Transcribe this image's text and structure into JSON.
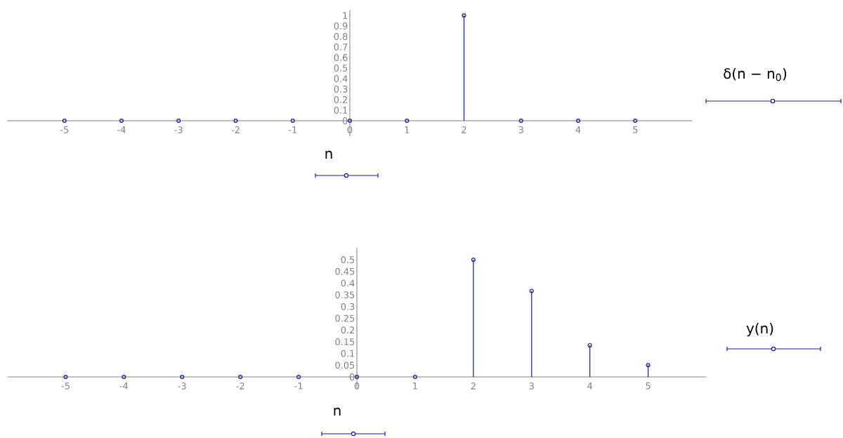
{
  "chart_data": [
    {
      "type": "lollipop",
      "xlabel": "n",
      "ylabel": "δ(n − n$_{0}$)",
      "color": "#1a1a96",
      "marker": "circle",
      "x": [
        -5,
        -4,
        -3,
        -2,
        -1,
        0,
        1,
        2,
        3,
        4,
        5
      ],
      "values": [
        0,
        0,
        0,
        0,
        0,
        0,
        0,
        1,
        0,
        0,
        0
      ],
      "xlim": [
        -6,
        6
      ],
      "ylim": [
        -0.15,
        1.05
      ],
      "xticks": [
        -5,
        -4,
        -3,
        -2,
        -1,
        0,
        1,
        2,
        3,
        4,
        5
      ],
      "yticks": [
        0,
        0.1,
        0.2,
        0.3,
        0.4,
        0.5,
        0.6,
        0.7,
        0.8,
        0.9,
        1
      ]
    },
    {
      "type": "lollipop",
      "xlabel": "n",
      "ylabel": "y(n)",
      "color": "#1a1a96",
      "marker": "circle",
      "x": [
        -5,
        -4,
        -3,
        -2,
        -1,
        0,
        1,
        2,
        3,
        4,
        5
      ],
      "values": [
        0,
        0,
        0,
        0,
        0,
        0,
        0,
        0.5,
        0.367,
        0.135,
        0.05
      ],
      "xlim": [
        -6,
        6
      ],
      "ylim": [
        -0.05,
        0.55
      ],
      "xticks": [
        -5,
        -4,
        -3,
        -2,
        -1,
        0,
        1,
        2,
        3,
        4,
        5
      ],
      "yticks": [
        0,
        0.05,
        0.1,
        0.15,
        0.2,
        0.25,
        0.3,
        0.35,
        0.4,
        0.45,
        0.5
      ]
    }
  ]
}
